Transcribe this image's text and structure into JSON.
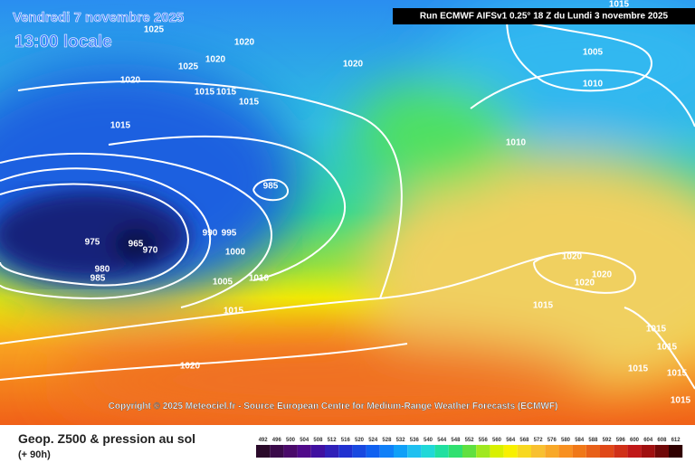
{
  "header": {
    "date": "Vendredi 7 novembre 2025",
    "time": "13:00 locale",
    "run": "Run ECMWF AIFSv1 0.25° 18 Z du Lundi 3 novembre 2025"
  },
  "copyright": "Copyright © 2025 Meteociel.fr - Source European Centre for Medium-Range Weather Forecasts (ECMWF)",
  "isobar_labels": [
    "1025",
    "1020",
    "1020",
    "1025",
    "1020",
    "1020",
    "1015",
    "1015",
    "1015",
    "1015",
    "985",
    "975",
    "965",
    "970",
    "980",
    "985",
    "990",
    "995",
    "1000",
    "1005",
    "1010",
    "1015",
    "1020",
    "1005",
    "1010",
    "1010",
    "1015",
    "1020",
    "1020",
    "1020",
    "1015",
    "1015",
    "1015",
    "1015",
    "1015",
    "1015"
  ],
  "footer": {
    "title": "Geop. Z500 & pression au sol",
    "lead": "(+ 90h)"
  },
  "scale": [
    492,
    496,
    500,
    504,
    508,
    512,
    516,
    520,
    524,
    528,
    532,
    536,
    540,
    544,
    548,
    552,
    556,
    560,
    564,
    568,
    572,
    576,
    580,
    584,
    588,
    592,
    596,
    600,
    604,
    608,
    612
  ]
}
